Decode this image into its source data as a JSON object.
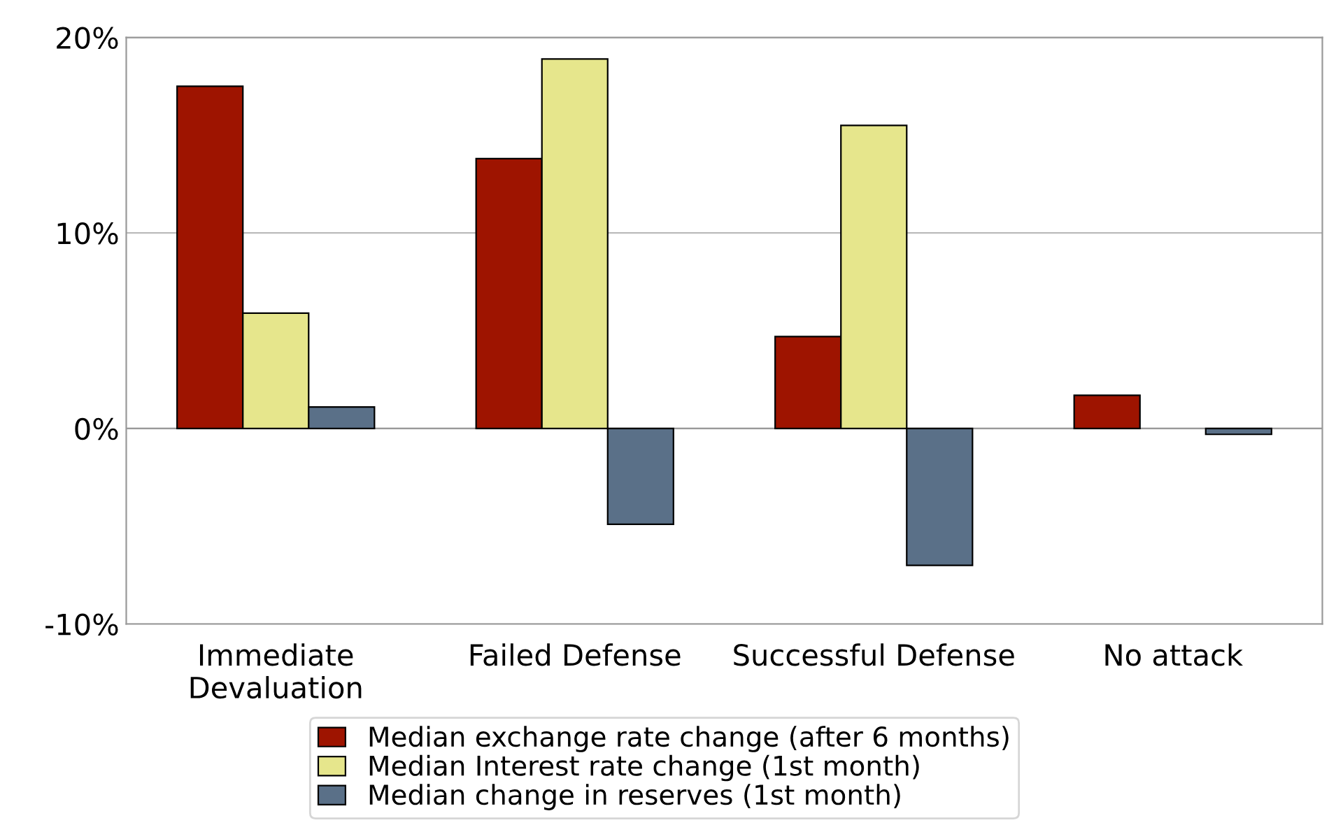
{
  "chart_data": {
    "type": "bar",
    "categories": [
      "Immediate\nDevaluation",
      "Failed Defense",
      "Successful Defense",
      "No attack"
    ],
    "series": [
      {
        "name": "Median exchange rate change (after 6 months)",
        "color": "#9e1400",
        "values": [
          17.5,
          13.8,
          4.7,
          1.7
        ]
      },
      {
        "name": "Median Interest rate change (1st month)",
        "color": "#e6e68c",
        "values": [
          5.9,
          18.9,
          15.5,
          null
        ]
      },
      {
        "name": "Median change in reserves (1st month)",
        "color": "#5a7088",
        "values": [
          1.1,
          -4.9,
          -7.0,
          -0.3
        ]
      }
    ],
    "ylim": [
      -10,
      20
    ],
    "yticks": [
      {
        "value": -10,
        "label": "-10%"
      },
      {
        "value": 0,
        "label": "0%"
      },
      {
        "value": 10,
        "label": "10%"
      },
      {
        "value": 20,
        "label": "20%"
      }
    ],
    "grid": "y",
    "legend": "bottom"
  }
}
